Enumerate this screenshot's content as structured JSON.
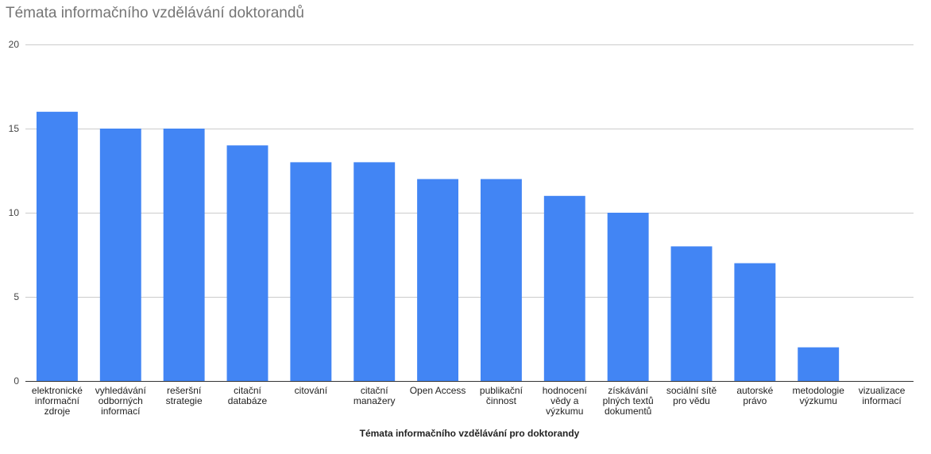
{
  "chart_data": {
    "type": "bar",
    "title": "Témata informačního vzdělávání doktorandů",
    "xlabel": "Témata informačního vzdělávání pro doktorandy",
    "ylabel": "",
    "ylim": [
      0,
      20
    ],
    "yticks": [
      "0",
      "5",
      "10",
      "15",
      "20"
    ],
    "grid": true,
    "legend": "none",
    "bar_color": "#4285f4",
    "categories": [
      [
        "elektronické",
        "informační",
        "zdroje"
      ],
      [
        "vyhledávání",
        "odborných",
        "informací"
      ],
      [
        "rešeršní",
        "strategie"
      ],
      [
        "citační",
        "databáze"
      ],
      [
        "citování"
      ],
      [
        "citační",
        "manažery"
      ],
      [
        "Open Access"
      ],
      [
        "publikační",
        "činnost"
      ],
      [
        "hodnocení",
        "vědy a",
        "výzkumu"
      ],
      [
        "získávání",
        "plných textů",
        "dokumentů"
      ],
      [
        "sociální sítě",
        "pro vědu"
      ],
      [
        "autorské",
        "právo"
      ],
      [
        "metodologie",
        "výzkumu"
      ],
      [
        "vizualizace",
        "informací"
      ]
    ],
    "values": [
      16,
      15,
      15,
      14,
      13,
      13,
      12,
      12,
      11,
      10,
      8,
      7,
      2,
      0
    ]
  }
}
